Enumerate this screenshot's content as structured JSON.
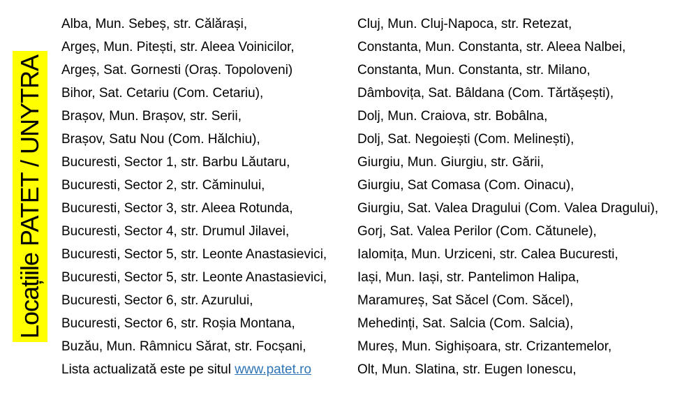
{
  "slide": {
    "background": "#ffffff",
    "text_color": "#000000"
  },
  "banner": {
    "label": "Locațiile PATET / UNYTRA",
    "background": "#ffff00",
    "text_color": "#000000"
  },
  "left_column": {
    "items": [
      "Alba, Mun. Sebeș, str. Călărași,",
      "Argeș, Mun. Pitești, str. Aleea Voinicilor,",
      "Argeș, Sat. Gornesti (Oraș. Topoloveni)",
      "Bihor, Sat. Cetariu (Com. Cetariu),",
      "Brașov, Mun. Brașov, str. Serii,",
      "Brașov, Satu Nou (Com. Hălchiu),",
      "Bucuresti, Sector 1, str. Barbu Lăutaru,",
      "Bucuresti, Sector 2, str. Căminului,",
      "Bucuresti, Sector 3, str. Aleea Rotunda,",
      "Bucuresti, Sector 4, str. Drumul Jilavei,",
      "Bucuresti, Sector 5, str. Leonte Anastasievici,",
      "Bucuresti, Sector 5, str. Leonte Anastasievici,",
      "Bucuresti, Sector 6, str. Azurului,",
      "Bucuresti, Sector 6, str. Roșia Montana,",
      "Buzău, Mun. Râmnicu Sărat, str. Focșani,"
    ],
    "footer_text": "Lista actualizată este pe situl ",
    "footer_link": "www.patet.ro"
  },
  "right_column": {
    "items": [
      "Cluj, Mun. Cluj-Napoca, str. Retezat,",
      "Constanta, Mun. Constanta, str. Aleea Nalbei,",
      "Constanta, Mun. Constanta, str. Milano,",
      "Dâmbovița, Sat. Bâldana (Com. Tărtășești),",
      "Dolj, Mun. Craiova, str. Bobâlna,",
      "Dolj, Sat. Negoiești (Com. Melinești),",
      "Giurgiu, Mun. Giurgiu, str. Gării,",
      "Giurgiu, Sat Comasa (Com. Oinacu),",
      "Giurgiu, Sat. Valea Dragului (Com. Valea Dragului),",
      "Gorj, Sat. Valea Perilor (Com. Cătunele),",
      "Ialomița, Mun. Urziceni, str. Calea Bucuresti,",
      "Iași, Mun. Iași, str. Pantelimon Halipa,",
      "Maramureș, Sat Săcel (Com. Săcel),",
      "Mehedinți, Sat. Salcia (Com. Salcia),",
      "Mureș, Mun. Sighișoara, str. Crizantemelor,",
      "Olt, Mun. Slatina, str. Eugen Ionescu,"
    ]
  },
  "link_color": "#2E75B6"
}
